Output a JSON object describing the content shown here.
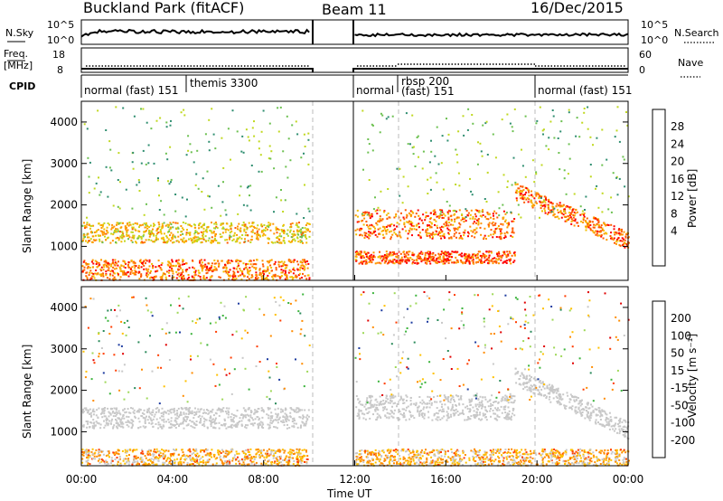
{
  "header": {
    "station": "Buckland Park (fitACF)",
    "beam": "Beam 11",
    "date": "16/Dec/2015"
  },
  "strips": {
    "nsky_label": "N.Sky",
    "nsky_ticks": [
      "10^5",
      "10^0"
    ],
    "nsearch_label": "N.Search",
    "nsearch_ticks": [
      "10^5",
      "10^0"
    ],
    "freq_label": "Freq.",
    "freq_unit": "[MHz]",
    "freq_ticks": [
      "18",
      "8"
    ],
    "nave_label": "Nave",
    "nave_ticks": [
      "60",
      "0"
    ],
    "cpid_label": "CPID"
  },
  "cpid_segments": [
    {
      "label": "normal (fast) 151",
      "start": 0,
      "end": 4.7
    },
    {
      "label": "themis 3300",
      "start": 4.7,
      "end": 10.0
    },
    {
      "label": "normal",
      "start": 12.0,
      "end": 14.0
    },
    {
      "label": "rbsp 200",
      "start": 14.0,
      "end": 19.9
    },
    {
      "label": "(fast) 151",
      "start": 14.0,
      "end": 19.9
    },
    {
      "label": "normal (fast) 151",
      "start": 19.9,
      "end": 24.0
    }
  ],
  "data_gap": {
    "start_hour": 10.0,
    "end_hour": 12.0
  },
  "mode_change_hours": [
    10.0,
    14.0,
    19.9
  ],
  "axes": {
    "x_label": "Time UT",
    "x_ticks": [
      "00:00",
      "04:00",
      "08:00",
      "12:00",
      "16:00",
      "20:00",
      "00:00"
    ],
    "y_label": "Slant Range [km]",
    "y_ticks": [
      "1000",
      "2000",
      "3000",
      "4000"
    ]
  },
  "power_scale": {
    "label": "Power [dB]",
    "ticks": [
      "28",
      "24",
      "20",
      "16",
      "12",
      "8",
      "4"
    ],
    "colors": [
      "#ff0000",
      "#ff5a00",
      "#ff9600",
      "#f2be00",
      "#c0d820",
      "#6cc050",
      "#2f8e70",
      "#2850b0",
      "#0000ff"
    ]
  },
  "velocity_scale": {
    "label": "Velocity [m s⁻¹]",
    "ticks": [
      "200",
      "100",
      "50",
      "15",
      "-15",
      "-50",
      "-100",
      "-200"
    ],
    "colors": [
      "#1e3ca0",
      "#2a8a5a",
      "#3cb43c",
      "#9ed858",
      "#c8c8c8",
      "#ffc000",
      "#ff8c00",
      "#ff3c00",
      "#e00000"
    ]
  },
  "chart_data": {
    "type": "heatmap",
    "title": "Buckland Park (fitACF)  Beam 11  16/Dec/2015",
    "xlabel": "Time UT",
    "ylabel": "Slant Range [km]",
    "xlim_hours": [
      0,
      24
    ],
    "ylim_km": [
      180,
      4500
    ],
    "panels": [
      {
        "name": "Power [dB]",
        "range_dB": [
          0,
          32
        ],
        "features": [
          {
            "desc": "main echo band",
            "t_start": 0.0,
            "t_end": 10.0,
            "range_km": [
              1100,
              1600
            ],
            "typical_dB": 20
          },
          {
            "desc": "near range band",
            "t_start": 0.0,
            "t_end": 10.0,
            "range_km": [
              200,
              700
            ],
            "typical_dB": 26
          },
          {
            "desc": "main echo band",
            "t_start": 12.0,
            "t_end": 19.0,
            "range_km": [
              1200,
              1900
            ],
            "typical_dB": 26
          },
          {
            "desc": "near range band",
            "t_start": 12.0,
            "t_end": 19.0,
            "range_km": [
              600,
              900
            ],
            "typical_dB": 28
          },
          {
            "desc": "descending band",
            "t_start": 19.0,
            "t_end": 24.0,
            "range_km": [
              1200,
              2400
            ],
            "typical_dB": 26
          }
        ]
      },
      {
        "name": "Velocity [m s-1]",
        "range_ms": [
          -200,
          200
        ],
        "features": [
          {
            "desc": "ground scatter band",
            "t_start": 0.0,
            "t_end": 10.0,
            "range_km": [
              1100,
              1600
            ],
            "typical_ms": 0
          },
          {
            "desc": "ground scatter band",
            "t_start": 12.0,
            "t_end": 19.0,
            "range_km": [
              1300,
              1900
            ],
            "typical_ms": 0
          },
          {
            "desc": "near range echoes",
            "t_start": 0.0,
            "t_end": 24.0,
            "range_km": [
              200,
              600
            ],
            "typical_ms": -60
          },
          {
            "desc": "descending band",
            "t_start": 19.0,
            "t_end": 24.0,
            "range_km": [
              1100,
              2400
            ],
            "typical_ms": 0
          }
        ]
      }
    ]
  }
}
